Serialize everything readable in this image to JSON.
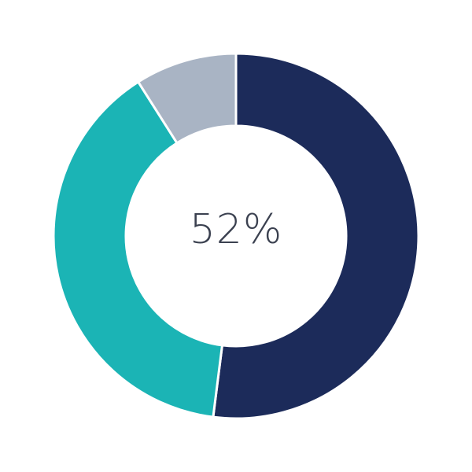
{
  "chart_data": {
    "type": "pie",
    "variant": "donut",
    "title": "",
    "center_label": "52%",
    "slices": [
      {
        "value": 52,
        "color": "#1c2b5a"
      },
      {
        "value": 39,
        "color": "#1bb4b5"
      },
      {
        "value": 9,
        "color": "#a9b4c4"
      }
    ],
    "start": "top",
    "direction": "clockwise",
    "legend": "none"
  }
}
